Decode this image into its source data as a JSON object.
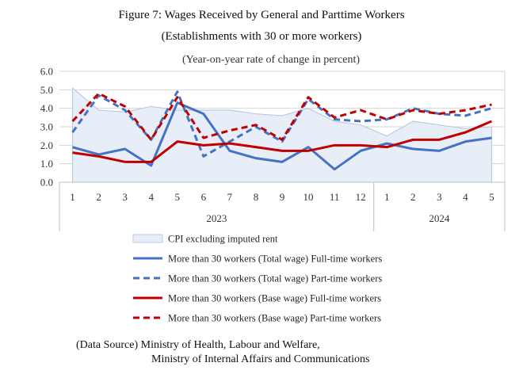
{
  "chart_data": {
    "type": "line",
    "title": "Figure 7: Wages Received by General and Parttime Workers",
    "subtitle": "(Establishments with 30 or more workers)",
    "ylabel": "(Year-on-year rate of change in percent)",
    "ylim": [
      0,
      6
    ],
    "yticks": [
      "0.0",
      "1.0",
      "2.0",
      "3.0",
      "4.0",
      "5.0",
      "6.0"
    ],
    "categories": [
      "1",
      "2",
      "3",
      "4",
      "5",
      "6",
      "7",
      "8",
      "9",
      "10",
      "11",
      "12",
      "1",
      "2",
      "3",
      "4",
      "5"
    ],
    "years": [
      {
        "label": "2023",
        "from": 0,
        "to": 11
      },
      {
        "label": "2024",
        "from": 12,
        "to": 16
      }
    ],
    "grid": true,
    "legend_position": "bottom",
    "series": [
      {
        "name": "CPI excluding imputed rent",
        "style": "area",
        "color": "#b9cbe4",
        "fill": "#e8eef7",
        "values": [
          5.1,
          3.9,
          3.8,
          4.1,
          3.9,
          3.9,
          3.9,
          3.7,
          3.6,
          4.0,
          3.3,
          3.1,
          2.5,
          3.3,
          3.1,
          2.9,
          3.0
        ]
      },
      {
        "name": "More than 30 workers (Total wage) Full-time workers",
        "style": "solid",
        "color": "#4472c4",
        "width": 3,
        "values": [
          1.9,
          1.5,
          1.8,
          0.9,
          4.3,
          3.7,
          1.7,
          1.3,
          1.1,
          1.9,
          0.7,
          1.7,
          2.1,
          1.8,
          1.7,
          2.2,
          2.4
        ]
      },
      {
        "name": "More than 30 workers (Total wage) Part-time workers",
        "style": "dashed",
        "color": "#4472c4",
        "width": 3,
        "values": [
          2.7,
          4.7,
          3.9,
          2.3,
          4.9,
          1.4,
          2.2,
          3.0,
          2.2,
          4.5,
          3.4,
          3.3,
          3.4,
          4.0,
          3.7,
          3.6,
          4.0
        ]
      },
      {
        "name": "More than 30 workers (Base wage) Full-time workers",
        "style": "solid",
        "color": "#c00000",
        "width": 3,
        "values": [
          1.6,
          1.4,
          1.1,
          1.1,
          2.2,
          2.0,
          2.1,
          1.9,
          1.7,
          1.7,
          2.0,
          2.0,
          1.9,
          2.3,
          2.3,
          2.7,
          3.3
        ]
      },
      {
        "name": "More than 30 workers (Base wage) Part-time workers",
        "style": "dashed",
        "color": "#c00000",
        "width": 3,
        "values": [
          3.3,
          4.8,
          4.1,
          2.3,
          4.6,
          2.4,
          2.8,
          3.1,
          2.3,
          4.6,
          3.5,
          3.9,
          3.4,
          3.9,
          3.7,
          3.9,
          4.2
        ]
      }
    ]
  },
  "source": {
    "line1": "(Data Source) Ministry of Health, Labour and Welfare,",
    "line2": "Ministry of Internal Affairs and Communications"
  }
}
